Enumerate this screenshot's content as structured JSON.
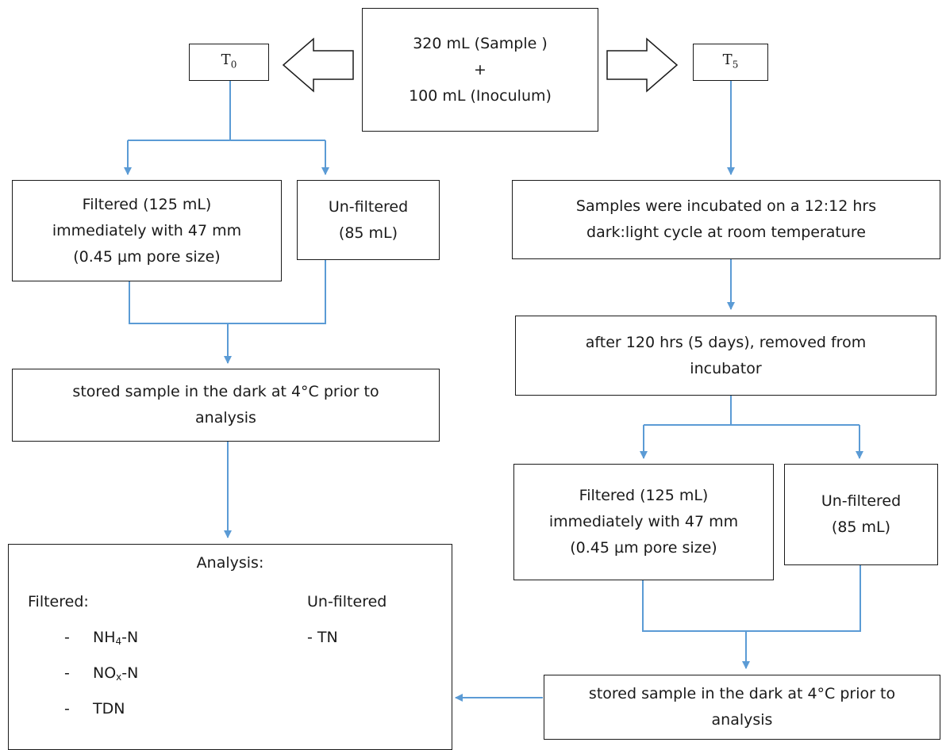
{
  "main": {
    "line1": "320 mL (Sample )",
    "plus": "+",
    "line2": "100 mL (Inoculum)"
  },
  "t0": {
    "letter": "T",
    "sub": "0"
  },
  "t5": {
    "letter": "T",
    "sub": "5"
  },
  "left": {
    "filtered": [
      "Filtered (125 mL)",
      "immediately with 47 mm",
      "(0.45 µm pore size)"
    ],
    "unfiltered": [
      "Un-filtered",
      "(85 mL)"
    ],
    "stored": [
      "stored sample in the dark at 4°C prior to",
      "analysis"
    ]
  },
  "right": {
    "incubated": [
      "Samples were incubated on a 12:12 hrs",
      "dark:light cycle at room temperature"
    ],
    "after": [
      "after 120 hrs (5 days), removed from",
      "incubator"
    ],
    "filtered": [
      "Filtered (125 mL)",
      "immediately with 47 mm",
      "(0.45 µm pore size)"
    ],
    "unfiltered": [
      "Un-filtered",
      "(85 mL)"
    ],
    "stored": [
      "stored sample in the dark at 4°C prior to",
      "analysis"
    ]
  },
  "analysis": {
    "title": "Analysis:",
    "filtered_heading": "Filtered:",
    "unfiltered_heading": "Un-filtered",
    "dash": "-",
    "item1_main": "NH",
    "item1_sub": "4",
    "item1_tail": "-N",
    "item2_main": "NO",
    "item2_sub": "x",
    "item2_tail": "-N",
    "item3": "TDN",
    "unfiltered_item": "- TN"
  },
  "colors": {
    "connector": "#5b9bd5",
    "border": "#1a1a1a"
  }
}
